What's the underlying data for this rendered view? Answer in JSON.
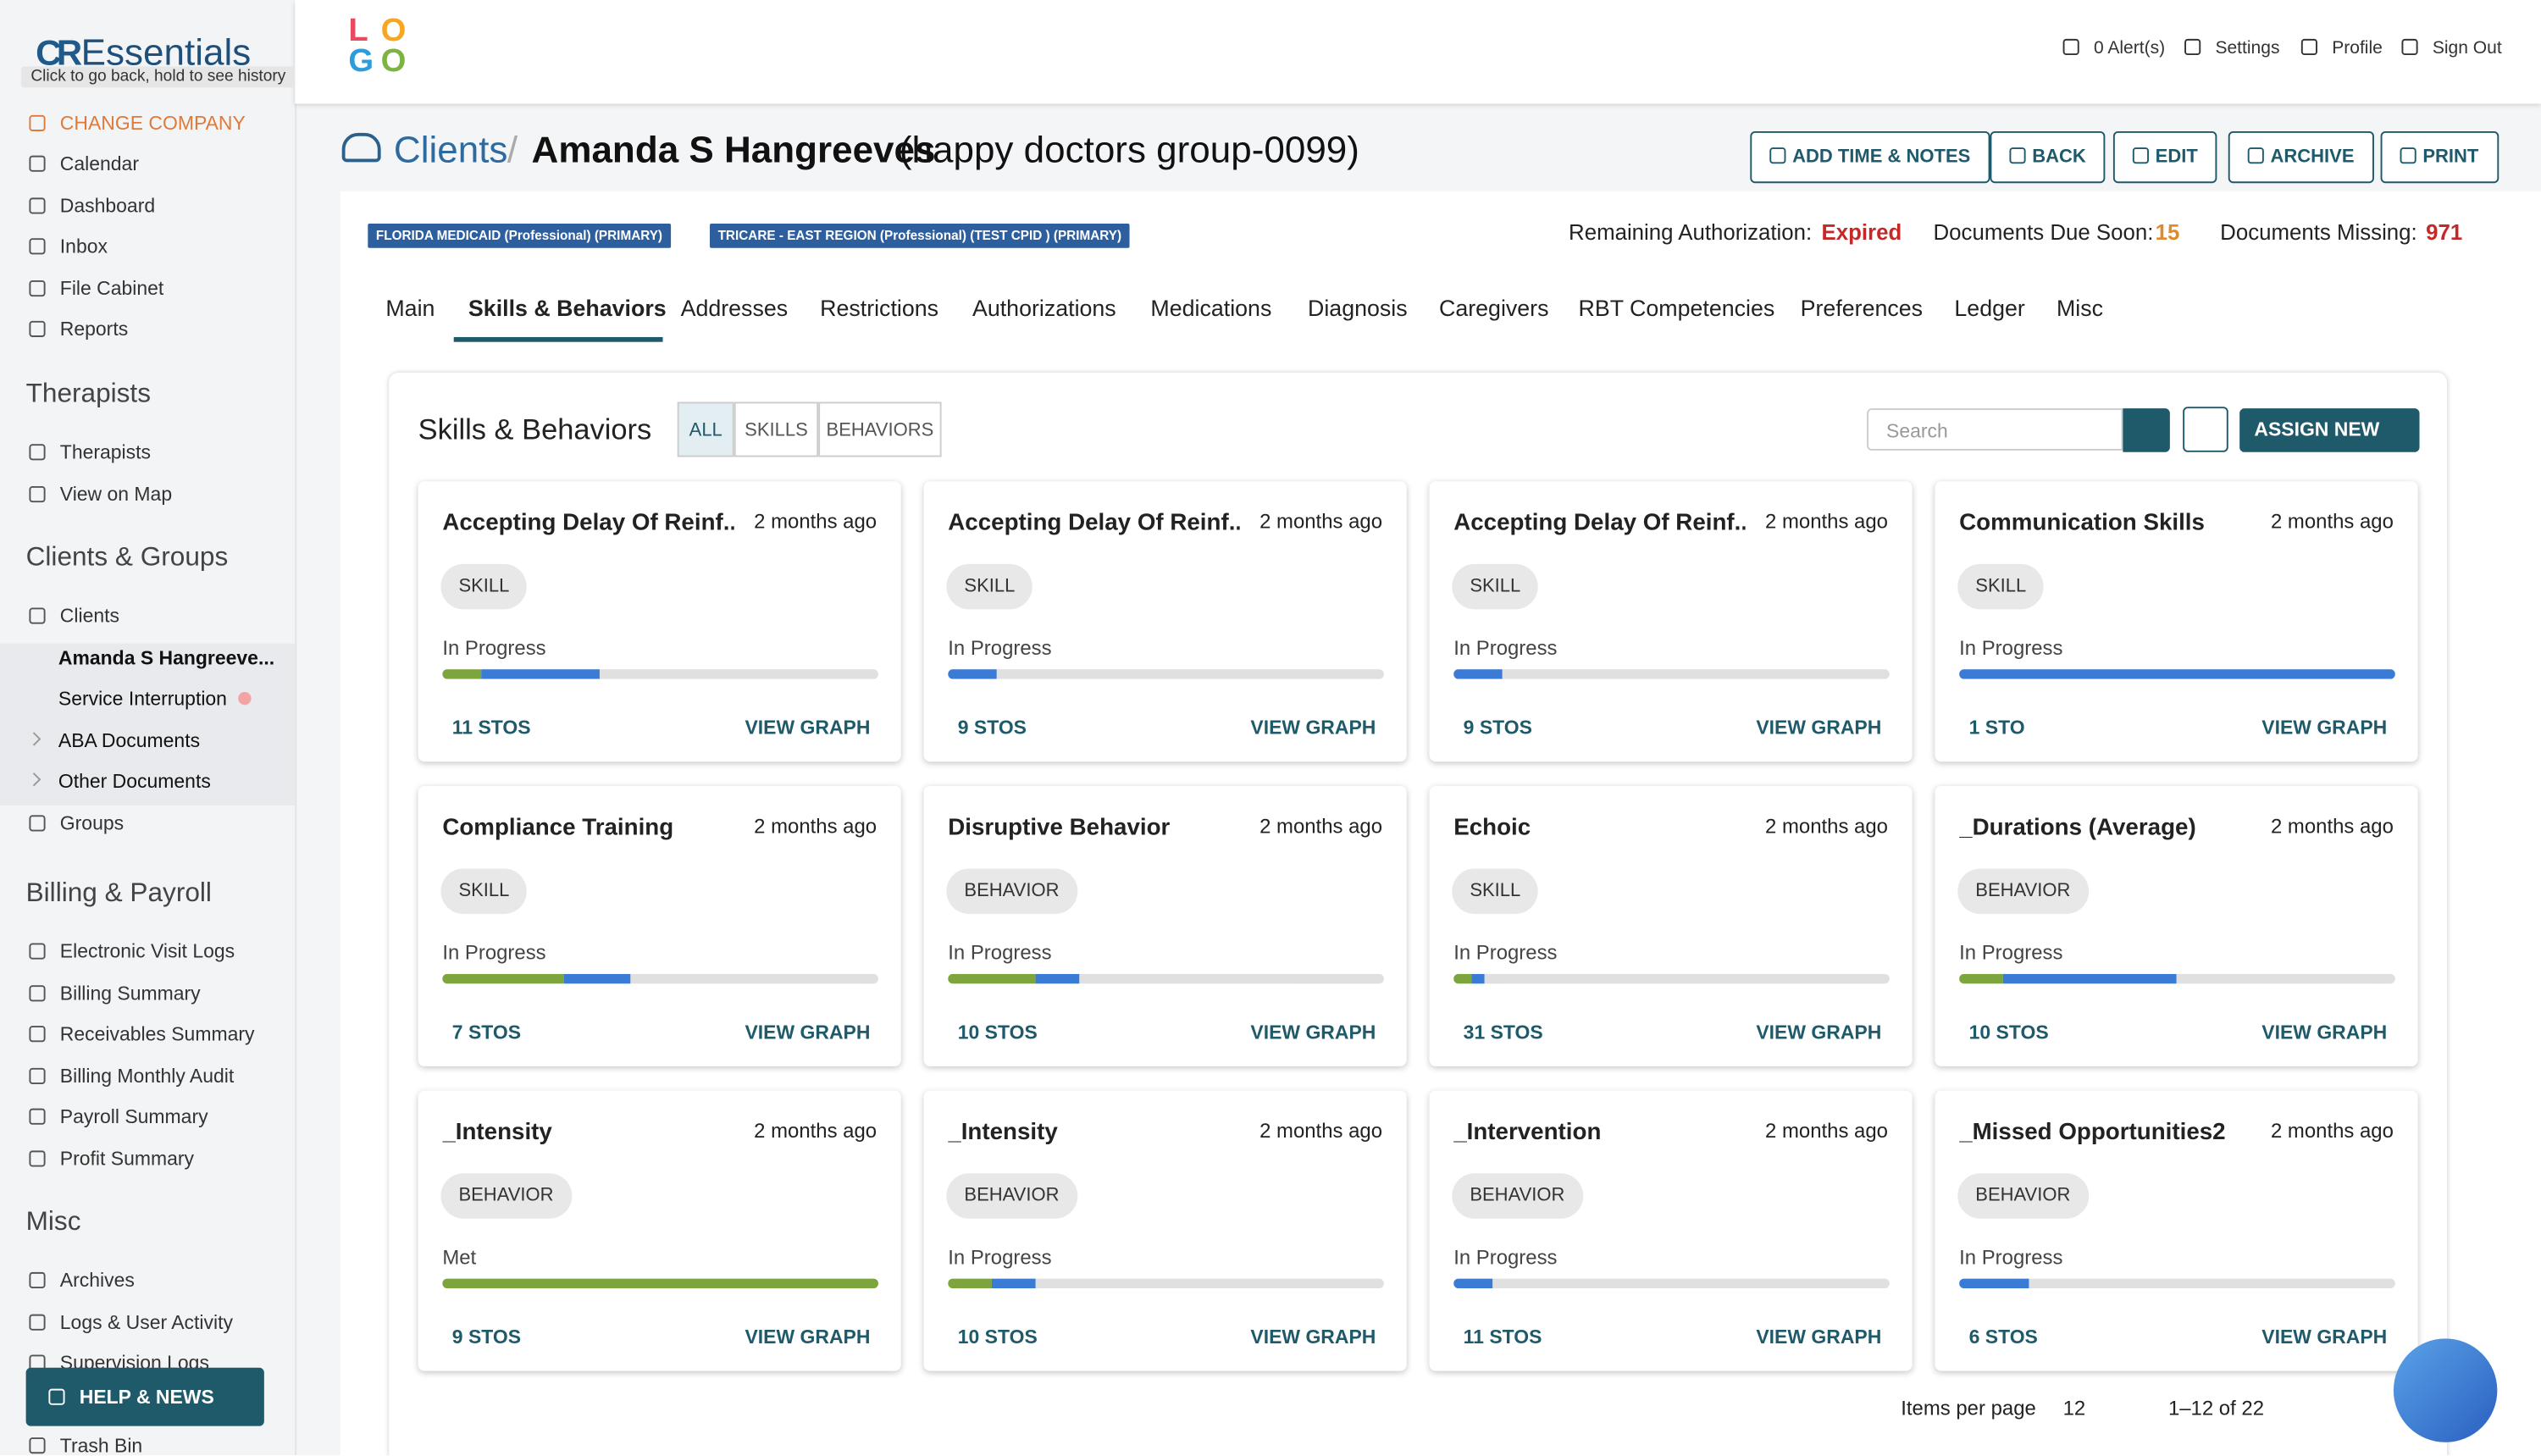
{
  "sidebar": {
    "brand_mark": "CR",
    "brand": "Essentials",
    "tooltip": "Click to go back, hold to see history",
    "change_company": "CHANGE COMPANY",
    "top_links": [
      "Calendar",
      "Dashboard",
      "Inbox",
      "File Cabinet",
      "Reports"
    ],
    "sections": [
      {
        "title": "Therapists",
        "links": [
          "Therapists",
          "View on Map"
        ]
      },
      {
        "title": "Clients & Groups",
        "links": [
          "Clients",
          "Amanda S Hangreeve...",
          "Service Interruption",
          "ABA Documents",
          "Other Documents",
          "Groups"
        ]
      },
      {
        "title": "Billing & Payroll",
        "links": [
          "Electronic Visit Logs",
          "Billing Summary",
          "Receivables Summary",
          "Billing Monthly Audit",
          "Payroll Summary",
          "Profit Summary"
        ]
      },
      {
        "title": "Misc",
        "links": [
          "Archives",
          "Logs & User Activity",
          "Supervision Logs",
          "Trash Bin"
        ]
      }
    ],
    "help": "HELP & NEWS"
  },
  "header": {
    "logo": [
      "L",
      "O",
      "G",
      "O"
    ],
    "links": [
      "0 Alert(s)",
      "Settings",
      "Profile",
      "Sign Out"
    ]
  },
  "client": {
    "crumb": "Clients",
    "separator": "/",
    "name": "Amanda S Hangreeves",
    "group": "(happy doctors group-0099)",
    "buttons": [
      "ADD TIME & NOTES",
      "BACK",
      "EDIT",
      "ARCHIVE",
      "PRINT"
    ],
    "insurance": [
      "FLORIDA MEDICAID (Professional) (PRIMARY)",
      "TRICARE - EAST REGION (Professional) (TEST CPID ) (PRIMARY)"
    ],
    "stats": [
      {
        "label": "Remaining Authorization:",
        "value": "Expired"
      },
      {
        "label": "Documents Due Soon:",
        "value": 15
      },
      {
        "label": "Documents Missing:",
        "value": 971
      }
    ],
    "tabs": [
      "Main",
      "Skills & Behaviors",
      "Addresses",
      "Restrictions",
      "Authorizations",
      "Medications",
      "Diagnosis",
      "Caregivers",
      "RBT Competencies",
      "Preferences",
      "Ledger",
      "Misc"
    ]
  },
  "panel": {
    "title": "Skills & Behaviors",
    "filters": [
      "ALL",
      "SKILLS",
      "BEHAVIORS"
    ],
    "search": "Search",
    "assign": "ASSIGN NEW",
    "cards": [
      {
        "title": "Accepting Delay Of Reinf...",
        "time": "2 months ago",
        "tag": "SKILL",
        "status": "In Progress",
        "met": 9,
        "in_progress": 27,
        "stos": "11 STOS",
        "link": "VIEW GRAPH"
      },
      {
        "title": "Accepting Delay Of Reinf...",
        "time": "2 months ago",
        "tag": "SKILL",
        "status": "In Progress",
        "met": 0,
        "in_progress": 11,
        "stos": "9 STOS",
        "link": "VIEW GRAPH"
      },
      {
        "title": "Accepting Delay Of Reinf...",
        "time": "2 months ago",
        "tag": "SKILL",
        "status": "In Progress",
        "met": 0,
        "in_progress": 11,
        "stos": "9 STOS",
        "link": "VIEW GRAPH"
      },
      {
        "title": "Communication Skills",
        "time": "2 months ago",
        "tag": "SKILL",
        "status": "In Progress",
        "met": 0,
        "in_progress": 100,
        "stos": "1 STO",
        "link": "VIEW GRAPH"
      },
      {
        "title": "Compliance Training",
        "time": "2 months ago",
        "tag": "SKILL",
        "status": "In Progress",
        "met": 28,
        "in_progress": 15,
        "stos": "7 STOS",
        "link": "VIEW GRAPH"
      },
      {
        "title": "Disruptive Behavior",
        "time": "2 months ago",
        "tag": "BEHAVIOR",
        "status": "In Progress",
        "met": 20,
        "in_progress": 10,
        "stos": "10 STOS",
        "link": "VIEW GRAPH"
      },
      {
        "title": "Echoic",
        "time": "2 months ago",
        "tag": "SKILL",
        "status": "In Progress",
        "met": 4,
        "in_progress": 3,
        "stos": "31 STOS",
        "link": "VIEW GRAPH"
      },
      {
        "title": "_Durations (Average)",
        "time": "2 months ago",
        "tag": "BEHAVIOR",
        "status": "In Progress",
        "met": 10,
        "in_progress": 40,
        "stos": "10 STOS",
        "link": "VIEW GRAPH"
      },
      {
        "title": "_Intensity",
        "time": "2 months ago",
        "tag": "BEHAVIOR",
        "status": "Met",
        "met": 100,
        "in_progress": 0,
        "stos": "9 STOS",
        "link": "VIEW GRAPH"
      },
      {
        "title": "_Intensity",
        "time": "2 months ago",
        "tag": "BEHAVIOR",
        "status": "In Progress",
        "met": 10,
        "in_progress": 10,
        "stos": "10 STOS",
        "link": "VIEW GRAPH"
      },
      {
        "title": "_Intervention",
        "time": "2 months ago",
        "tag": "BEHAVIOR",
        "status": "In Progress",
        "met": 0,
        "in_progress": 9,
        "stos": "11 STOS",
        "link": "VIEW GRAPH"
      },
      {
        "title": "_Missed Opportunities2",
        "time": "2 months ago",
        "tag": "BEHAVIOR",
        "status": "In Progress",
        "met": 0,
        "in_progress": 16,
        "stos": "6 STOS",
        "link": "VIEW GRAPH"
      }
    ],
    "pagination": {
      "label": "Items per page",
      "per_page": 12,
      "range": "1–12 of 22"
    }
  }
}
